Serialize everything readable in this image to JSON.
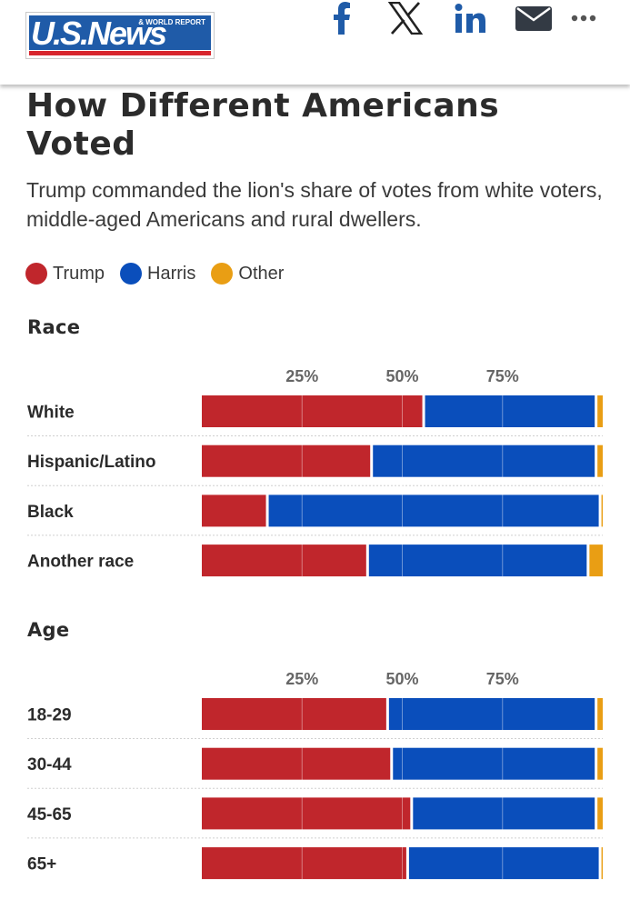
{
  "header": {
    "logo_text": "U.S.News",
    "logo_subtext": "& WORLD REPORT",
    "share_icons": [
      "facebook-icon",
      "x-icon",
      "linkedin-icon",
      "email-icon",
      "more-icon"
    ],
    "icon_color": "#1f5ba8"
  },
  "article": {
    "title": "How Different Americans Voted",
    "subtitle": "Trump commanded the lion's share of votes from white voters, middle-aged Americans and rural dwellers."
  },
  "legend": [
    {
      "label": "Trump",
      "color": "#c0262c"
    },
    {
      "label": "Harris",
      "color": "#0a4ebb"
    },
    {
      "label": "Other",
      "color": "#e99e14"
    }
  ],
  "chart_data": [
    {
      "type": "bar",
      "stacked": true,
      "orientation": "horizontal",
      "title": "Race",
      "xlim": [
        0,
        100
      ],
      "tick_values": [
        25,
        50,
        75
      ],
      "tick_labels": [
        "25%",
        "50%",
        "75%"
      ],
      "categories": [
        "White",
        "Hispanic/Latino",
        "Black",
        "Another race"
      ],
      "series": [
        {
          "name": "Trump",
          "values": [
            55,
            42,
            16,
            41
          ]
        },
        {
          "name": "Harris",
          "values": [
            43,
            56,
            83,
            55
          ]
        },
        {
          "name": "Other",
          "values": [
            2,
            2,
            1,
            4
          ]
        }
      ]
    },
    {
      "type": "bar",
      "stacked": true,
      "orientation": "horizontal",
      "title": "Age",
      "xlim": [
        0,
        100
      ],
      "tick_values": [
        25,
        50,
        75
      ],
      "tick_labels": [
        "25%",
        "50%",
        "75%"
      ],
      "categories": [
        "18-29",
        "30-44",
        "45-65",
        "65+"
      ],
      "series": [
        {
          "name": "Trump",
          "values": [
            46,
            47,
            52,
            51
          ]
        },
        {
          "name": "Harris",
          "values": [
            52,
            51,
            46,
            48
          ]
        },
        {
          "name": "Other",
          "values": [
            2,
            2,
            2,
            1
          ]
        }
      ]
    }
  ]
}
